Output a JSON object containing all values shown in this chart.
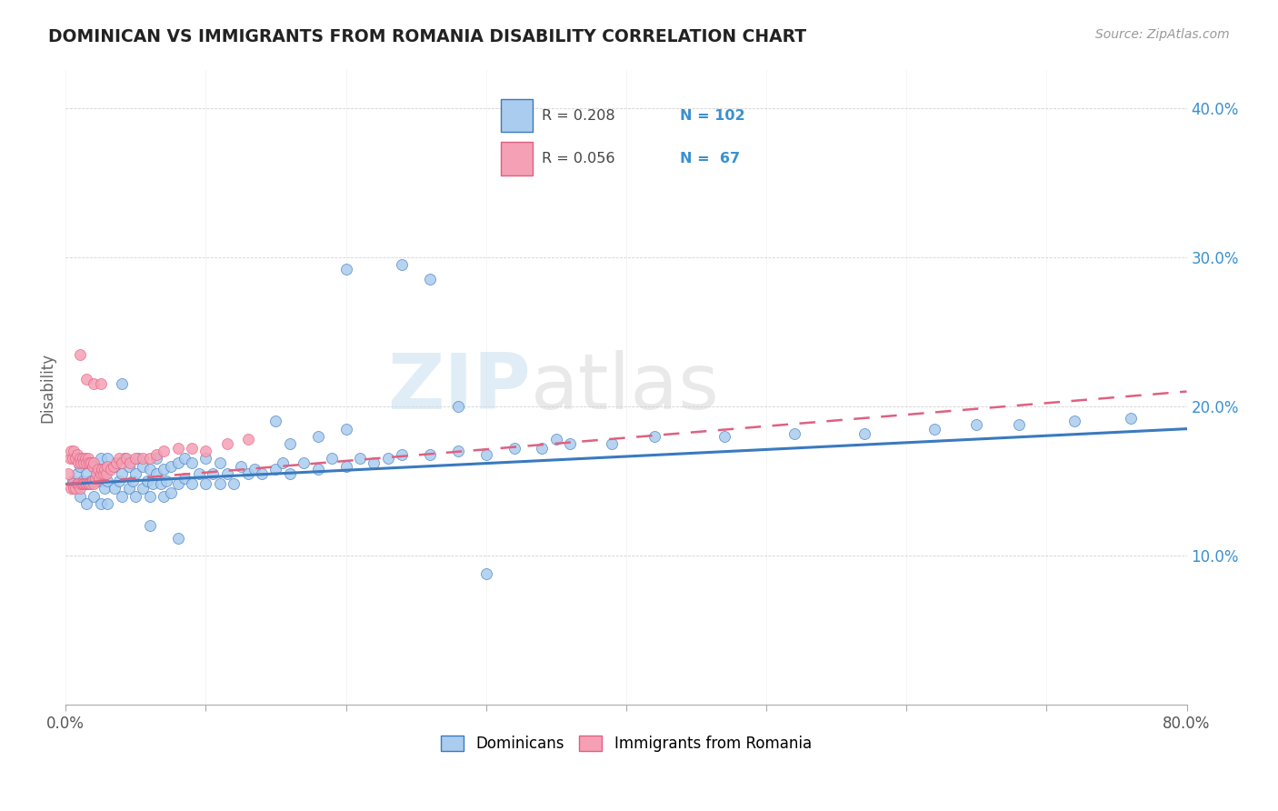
{
  "title": "DOMINICAN VS IMMIGRANTS FROM ROMANIA DISABILITY CORRELATION CHART",
  "source": "Source: ZipAtlas.com",
  "ylabel": "Disability",
  "yticks": [
    0.1,
    0.2,
    0.3,
    0.4
  ],
  "ytick_labels": [
    "10.0%",
    "20.0%",
    "30.0%",
    "40.0%"
  ],
  "xticks": [
    0.0,
    0.1,
    0.2,
    0.3,
    0.4,
    0.5,
    0.6,
    0.7,
    0.8
  ],
  "xmin": 0.0,
  "xmax": 0.8,
  "ymin": 0.0,
  "ymax": 0.425,
  "legend_label1": "Dominicans",
  "legend_label2": "Immigrants from Romania",
  "color_blue": "#aaccee",
  "color_blue_line": "#3a7abf",
  "color_pink": "#f5a0b5",
  "color_pink_line": "#e06080",
  "color_text_blue": "#3a90d0",
  "watermark_zip": "ZIP",
  "watermark_atlas": "atlas",
  "blue_line_start_y": 0.148,
  "blue_line_end_y": 0.185,
  "pink_line_start_y": 0.148,
  "pink_line_end_y": 0.21,
  "dominicans_x": [
    0.005,
    0.008,
    0.01,
    0.01,
    0.012,
    0.015,
    0.015,
    0.018,
    0.02,
    0.02,
    0.022,
    0.025,
    0.025,
    0.025,
    0.028,
    0.03,
    0.03,
    0.03,
    0.035,
    0.035,
    0.038,
    0.04,
    0.04,
    0.042,
    0.045,
    0.045,
    0.048,
    0.05,
    0.05,
    0.052,
    0.055,
    0.055,
    0.058,
    0.06,
    0.06,
    0.062,
    0.065,
    0.065,
    0.068,
    0.07,
    0.07,
    0.072,
    0.075,
    0.075,
    0.08,
    0.08,
    0.085,
    0.085,
    0.09,
    0.09,
    0.095,
    0.1,
    0.1,
    0.105,
    0.11,
    0.11,
    0.115,
    0.12,
    0.125,
    0.13,
    0.135,
    0.14,
    0.15,
    0.155,
    0.16,
    0.17,
    0.18,
    0.19,
    0.2,
    0.21,
    0.22,
    0.23,
    0.24,
    0.26,
    0.28,
    0.3,
    0.32,
    0.34,
    0.36,
    0.39,
    0.28,
    0.16,
    0.18,
    0.2,
    0.35,
    0.42,
    0.47,
    0.52,
    0.57,
    0.62,
    0.65,
    0.68,
    0.72,
    0.76,
    0.2,
    0.24,
    0.26,
    0.15,
    0.3,
    0.04,
    0.06,
    0.08
  ],
  "dominicans_y": [
    0.15,
    0.155,
    0.14,
    0.16,
    0.15,
    0.135,
    0.155,
    0.15,
    0.14,
    0.16,
    0.15,
    0.135,
    0.15,
    0.165,
    0.145,
    0.135,
    0.15,
    0.165,
    0.145,
    0.16,
    0.15,
    0.14,
    0.155,
    0.165,
    0.145,
    0.16,
    0.15,
    0.14,
    0.155,
    0.165,
    0.145,
    0.16,
    0.15,
    0.14,
    0.158,
    0.148,
    0.155,
    0.165,
    0.148,
    0.14,
    0.158,
    0.15,
    0.142,
    0.16,
    0.148,
    0.162,
    0.152,
    0.165,
    0.148,
    0.162,
    0.155,
    0.148,
    0.165,
    0.155,
    0.148,
    0.162,
    0.155,
    0.148,
    0.16,
    0.155,
    0.158,
    0.155,
    0.158,
    0.162,
    0.155,
    0.162,
    0.158,
    0.165,
    0.16,
    0.165,
    0.162,
    0.165,
    0.168,
    0.168,
    0.17,
    0.168,
    0.172,
    0.172,
    0.175,
    0.175,
    0.2,
    0.175,
    0.18,
    0.185,
    0.178,
    0.18,
    0.18,
    0.182,
    0.182,
    0.185,
    0.188,
    0.188,
    0.19,
    0.192,
    0.292,
    0.295,
    0.285,
    0.19,
    0.088,
    0.215,
    0.12,
    0.112
  ],
  "romania_x": [
    0.002,
    0.003,
    0.004,
    0.004,
    0.005,
    0.005,
    0.006,
    0.006,
    0.007,
    0.007,
    0.008,
    0.008,
    0.009,
    0.009,
    0.01,
    0.01,
    0.011,
    0.011,
    0.012,
    0.012,
    0.013,
    0.013,
    0.014,
    0.014,
    0.015,
    0.015,
    0.016,
    0.016,
    0.017,
    0.017,
    0.018,
    0.018,
    0.019,
    0.019,
    0.02,
    0.02,
    0.021,
    0.022,
    0.023,
    0.024,
    0.025,
    0.026,
    0.027,
    0.028,
    0.029,
    0.03,
    0.032,
    0.034,
    0.036,
    0.038,
    0.04,
    0.043,
    0.046,
    0.05,
    0.055,
    0.06,
    0.065,
    0.07,
    0.08,
    0.09,
    0.1,
    0.115,
    0.13,
    0.01,
    0.015,
    0.02,
    0.025
  ],
  "romania_y": [
    0.155,
    0.165,
    0.145,
    0.17,
    0.148,
    0.165,
    0.145,
    0.17,
    0.145,
    0.165,
    0.148,
    0.168,
    0.148,
    0.162,
    0.145,
    0.165,
    0.148,
    0.162,
    0.148,
    0.165,
    0.148,
    0.162,
    0.148,
    0.165,
    0.148,
    0.162,
    0.148,
    0.165,
    0.148,
    0.162,
    0.148,
    0.162,
    0.15,
    0.16,
    0.148,
    0.162,
    0.152,
    0.155,
    0.158,
    0.152,
    0.155,
    0.158,
    0.155,
    0.158,
    0.155,
    0.16,
    0.158,
    0.16,
    0.162,
    0.165,
    0.162,
    0.165,
    0.162,
    0.165,
    0.165,
    0.165,
    0.168,
    0.17,
    0.172,
    0.172,
    0.17,
    0.175,
    0.178,
    0.235,
    0.218,
    0.215,
    0.215
  ]
}
